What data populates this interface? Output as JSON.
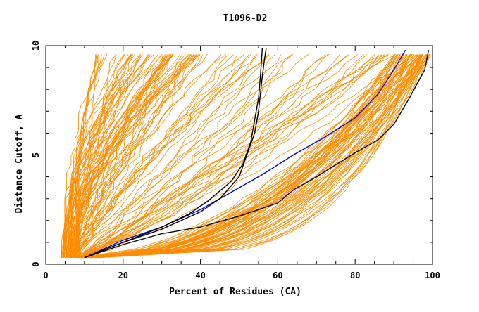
{
  "chart_data": {
    "type": "line",
    "title": "T1096-D2",
    "xlabel": "Percent of Residues (CA)",
    "ylabel": "Distance Cutoff, A",
    "xlim": [
      0,
      100
    ],
    "ylim": [
      0,
      10
    ],
    "xticks": [
      0,
      20,
      40,
      60,
      80,
      100
    ],
    "yticks": [
      0,
      5,
      10
    ],
    "grid": false,
    "colors": {
      "models": "#ff8c00",
      "highlight_blue": "#0000cc",
      "highlight_black": "#000000"
    },
    "highlighted_series": [
      {
        "color": "#0000cc",
        "x": [
          10,
          20,
          30,
          40,
          48,
          56,
          64,
          72,
          80,
          86,
          90,
          93
        ],
        "y": [
          0.3,
          1.1,
          1.7,
          2.5,
          3.3,
          4.1,
          5.0,
          5.8,
          6.7,
          7.8,
          8.9,
          9.8
        ]
      },
      {
        "color": "#000000",
        "x": [
          10,
          20,
          30,
          40,
          50,
          60,
          64,
          70,
          80,
          86,
          90,
          94,
          98,
          99
        ],
        "y": [
          0.3,
          0.9,
          1.4,
          1.7,
          2.2,
          2.8,
          3.4,
          4.0,
          5.1,
          5.7,
          6.4,
          7.6,
          8.9,
          9.8
        ]
      },
      {
        "color": "#000000",
        "x": [
          10,
          20,
          30,
          40,
          45,
          50,
          52,
          54,
          55,
          55.5,
          56,
          56.5,
          57
        ],
        "y": [
          0.3,
          1.0,
          1.6,
          2.4,
          3.0,
          4.0,
          5.0,
          6.0,
          7.0,
          7.8,
          8.6,
          9.3,
          9.9
        ]
      },
      {
        "color": "#000000",
        "x": [
          10,
          20,
          30,
          37,
          42,
          48,
          51,
          53,
          54,
          55,
          55.5,
          56
        ],
        "y": [
          0.3,
          1.0,
          1.7,
          2.3,
          2.9,
          3.8,
          4.6,
          5.6,
          6.6,
          7.6,
          8.6,
          9.9
        ]
      }
    ]
  }
}
